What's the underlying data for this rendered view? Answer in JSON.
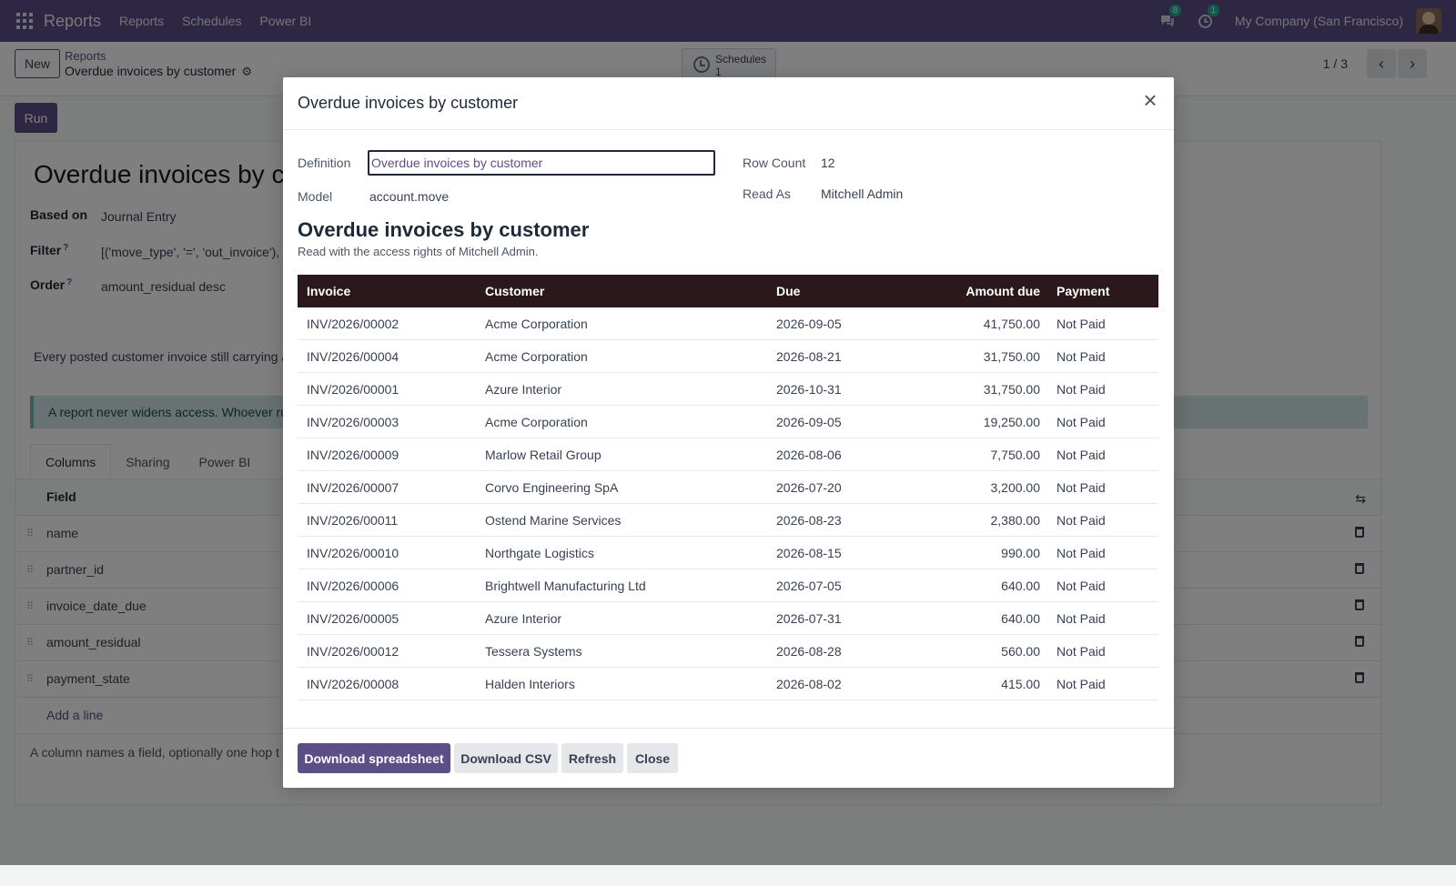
{
  "navbar": {
    "brand": "Reports",
    "menu": [
      "Reports",
      "Schedules",
      "Power BI"
    ],
    "messages_count": "8",
    "activities_count": "1",
    "company": "My Company (San Francisco)"
  },
  "control_panel": {
    "new_label": "New",
    "breadcrumb_parent": "Reports",
    "breadcrumb_current": "Overdue invoices by customer",
    "schedules_label": "Schedules",
    "schedules_count": "1",
    "pager": "1 / 3"
  },
  "form": {
    "run_label": "Run",
    "title": "Overdue invoices by customer",
    "based_on_label": "Based on",
    "based_on_value": "Journal Entry",
    "filter_label": "Filter",
    "filter_value": "[('move_type', '=', 'out_invoice'),",
    "order_label": "Order",
    "order_value": "amount_residual desc",
    "help_mark": "?",
    "description": "Every posted customer invoice still carrying a",
    "alert": "A report never widens access. Whoever ru",
    "tabs": [
      "Columns",
      "Sharing",
      "Power BI"
    ],
    "columns_header": "Field",
    "fields": [
      "name",
      "partner_id",
      "invoice_date_due",
      "amount_residual",
      "payment_state"
    ],
    "add_line": "Add a line",
    "footer_note": "A column names a field, optionally one hop t"
  },
  "modal": {
    "title": "Overdue invoices by customer",
    "definition_label": "Definition",
    "definition_value": "Overdue invoices by customer",
    "model_label": "Model",
    "model_value": "account.move",
    "row_count_label": "Row Count",
    "row_count_value": "12",
    "read_as_label": "Read As",
    "read_as_value": "Mitchell Admin",
    "report_title": "Overdue invoices by customer",
    "report_subtitle": "Read with the access rights of Mitchell Admin.",
    "table": {
      "headers": [
        "Invoice",
        "Customer",
        "Due",
        "Amount due",
        "Payment"
      ],
      "rows": [
        [
          "INV/2026/00002",
          "Acme Corporation",
          "2026-09-05",
          "41,750.00",
          "Not Paid"
        ],
        [
          "INV/2026/00004",
          "Acme Corporation",
          "2026-08-21",
          "31,750.00",
          "Not Paid"
        ],
        [
          "INV/2026/00001",
          "Azure Interior",
          "2026-10-31",
          "31,750.00",
          "Not Paid"
        ],
        [
          "INV/2026/00003",
          "Acme Corporation",
          "2026-09-05",
          "19,250.00",
          "Not Paid"
        ],
        [
          "INV/2026/00009",
          "Marlow Retail Group",
          "2026-08-06",
          "7,750.00",
          "Not Paid"
        ],
        [
          "INV/2026/00007",
          "Corvo Engineering SpA",
          "2026-07-20",
          "3,200.00",
          "Not Paid"
        ],
        [
          "INV/2026/00011",
          "Ostend Marine Services",
          "2026-08-23",
          "2,380.00",
          "Not Paid"
        ],
        [
          "INV/2026/00010",
          "Northgate Logistics",
          "2026-08-15",
          "990.00",
          "Not Paid"
        ],
        [
          "INV/2026/00006",
          "Brightwell Manufacturing Ltd",
          "2026-07-05",
          "640.00",
          "Not Paid"
        ],
        [
          "INV/2026/00005",
          "Azure Interior",
          "2026-07-31",
          "640.00",
          "Not Paid"
        ],
        [
          "INV/2026/00012",
          "Tessera Systems",
          "2026-08-28",
          "560.00",
          "Not Paid"
        ],
        [
          "INV/2026/00008",
          "Halden Interiors",
          "2026-08-02",
          "415.00",
          "Not Paid"
        ]
      ]
    },
    "buttons": {
      "download_spreadsheet": "Download spreadsheet",
      "download_csv": "Download CSV",
      "refresh": "Refresh",
      "close": "Close"
    }
  }
}
